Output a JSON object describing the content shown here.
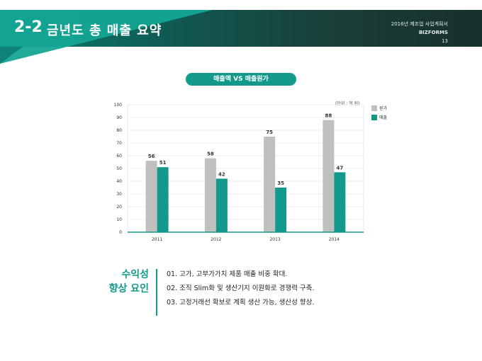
{
  "header": {
    "section_number": "2-2",
    "title": "금년도 총 매출 요약",
    "doc_title": "2016년 제조업 사업계획서",
    "brand": "BIZFORMS",
    "page_number": "13"
  },
  "chart_label": "매출액 VS 매출원가",
  "chart_data": {
    "type": "bar",
    "unit": "(단위 : 억 원)",
    "categories": [
      "2011",
      "2012",
      "2013",
      "2014"
    ],
    "series": [
      {
        "name": "원가",
        "values": [
          56,
          58,
          75,
          88
        ],
        "color": "#bfbfbf"
      },
      {
        "name": "매출",
        "values": [
          51,
          42,
          35,
          47
        ],
        "color": "#12998b"
      }
    ],
    "ylim": [
      0,
      100
    ],
    "yticks": [
      "0",
      "10",
      "20",
      "30",
      "40",
      "50",
      "60",
      "70",
      "80",
      "90",
      "100"
    ],
    "grid": true,
    "legend": "right"
  },
  "factors": {
    "title_line1": "수익성",
    "title_line2": "향상 요인",
    "items": [
      "01. 고가, 고부가가치 제품 매출 비중 확대.",
      "02. 조직 Slim화 및 생산기지 이원화로 경쟁력 구축.",
      "03. 고정거래선 확보로 계획 생산 가능, 생산성 향상."
    ]
  }
}
